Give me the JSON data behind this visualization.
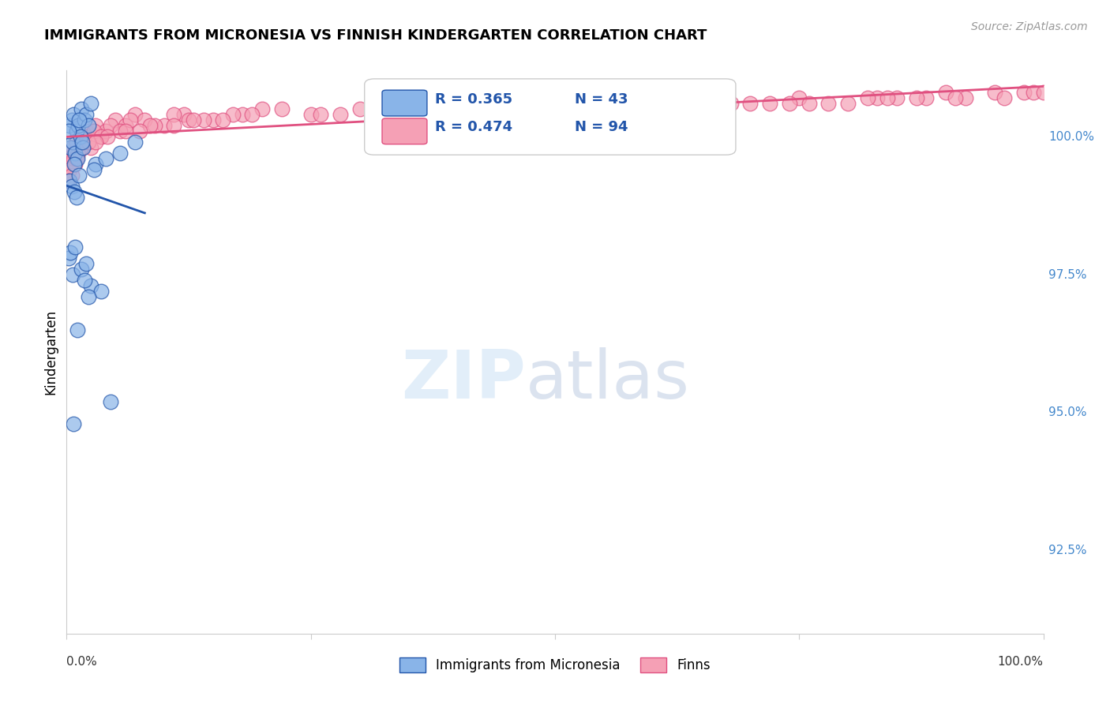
{
  "title": "IMMIGRANTS FROM MICRONESIA VS FINNISH KINDERGARTEN CORRELATION CHART",
  "source": "Source: ZipAtlas.com",
  "ylabel": "Kindergarten",
  "ylabel_ticks": [
    "92.5%",
    "95.0%",
    "97.5%",
    "100.0%"
  ],
  "ylabel_tick_values": [
    92.5,
    95.0,
    97.5,
    100.0
  ],
  "xmin": 0.0,
  "xmax": 100.0,
  "ymin": 91.0,
  "ymax": 101.2,
  "legend_blue_label": "Immigrants from Micronesia",
  "legend_pink_label": "Finns",
  "r_blue": "R = 0.365",
  "n_blue": "N = 43",
  "r_pink": "R = 0.474",
  "n_pink": "N = 94",
  "blue_color": "#89b4e8",
  "pink_color": "#f5a0b5",
  "blue_line_color": "#2255aa",
  "pink_line_color": "#e05080",
  "blue_scatter_x": [
    0.3,
    0.5,
    0.7,
    1.0,
    1.2,
    1.5,
    1.8,
    2.0,
    2.2,
    2.5,
    0.4,
    0.6,
    0.9,
    1.1,
    1.4,
    1.7,
    0.2,
    0.8,
    1.3,
    1.6,
    3.0,
    4.0,
    5.5,
    7.0,
    2.8,
    0.3,
    0.5,
    0.8,
    1.0,
    1.3,
    0.2,
    0.4,
    0.6,
    0.9,
    1.5,
    2.0,
    2.5,
    3.5,
    1.8,
    2.2,
    4.5,
    0.7,
    1.1
  ],
  "blue_scatter_y": [
    100.2,
    100.3,
    100.4,
    100.1,
    100.2,
    100.5,
    100.3,
    100.4,
    100.2,
    100.6,
    99.8,
    99.9,
    99.7,
    99.6,
    100.0,
    99.8,
    100.1,
    99.5,
    100.3,
    99.9,
    99.5,
    99.6,
    99.7,
    99.9,
    99.4,
    99.2,
    99.1,
    99.0,
    98.9,
    99.3,
    97.8,
    97.9,
    97.5,
    98.0,
    97.6,
    97.7,
    97.3,
    97.2,
    97.4,
    97.1,
    95.2,
    94.8,
    96.5
  ],
  "pink_scatter_x": [
    0.2,
    0.4,
    0.6,
    0.8,
    1.0,
    1.5,
    2.0,
    2.5,
    3.0,
    3.5,
    4.0,
    5.0,
    6.0,
    7.0,
    8.0,
    10.0,
    12.0,
    15.0,
    20.0,
    25.0,
    0.3,
    0.7,
    1.2,
    1.8,
    2.8,
    4.5,
    6.5,
    9.0,
    11.0,
    14.0,
    18.0,
    22.0,
    30.0,
    35.0,
    40.0,
    50.0,
    60.0,
    70.0,
    75.0,
    80.0,
    85.0,
    90.0,
    0.5,
    1.5,
    3.5,
    5.5,
    8.5,
    12.5,
    17.0,
    28.0,
    38.0,
    45.0,
    55.0,
    65.0,
    72.0,
    78.0,
    83.0,
    88.0,
    92.0,
    95.0,
    0.9,
    2.2,
    4.2,
    7.5,
    13.0,
    19.0,
    32.0,
    42.0,
    52.0,
    62.0,
    0.1,
    1.0,
    3.0,
    6.0,
    11.0,
    16.0,
    26.0,
    36.0,
    46.0,
    56.0,
    66.0,
    76.0,
    82.0,
    87.0,
    91.0,
    96.0,
    98.0,
    99.0,
    100.0,
    48.0,
    58.0,
    68.0,
    74.0,
    84.0
  ],
  "pink_scatter_y": [
    99.6,
    99.5,
    99.8,
    99.7,
    99.9,
    100.0,
    100.1,
    99.8,
    100.2,
    100.0,
    100.1,
    100.3,
    100.2,
    100.4,
    100.3,
    100.2,
    100.4,
    100.3,
    100.5,
    100.4,
    99.4,
    99.6,
    99.7,
    100.0,
    100.1,
    100.2,
    100.3,
    100.2,
    100.4,
    100.3,
    100.4,
    100.5,
    100.5,
    100.6,
    100.5,
    100.6,
    100.7,
    100.6,
    100.7,
    100.6,
    100.7,
    100.8,
    99.3,
    99.8,
    100.0,
    100.1,
    100.2,
    100.3,
    100.4,
    100.4,
    100.5,
    100.5,
    100.6,
    100.5,
    100.6,
    100.6,
    100.7,
    100.7,
    100.7,
    100.8,
    99.5,
    99.9,
    100.0,
    100.1,
    100.3,
    100.4,
    100.5,
    100.5,
    100.5,
    100.6,
    99.2,
    99.6,
    99.9,
    100.1,
    100.2,
    100.3,
    100.4,
    100.5,
    100.5,
    100.6,
    100.6,
    100.6,
    100.7,
    100.7,
    100.7,
    100.7,
    100.8,
    100.8,
    100.8,
    100.5,
    100.6,
    100.6,
    100.6,
    100.7
  ]
}
